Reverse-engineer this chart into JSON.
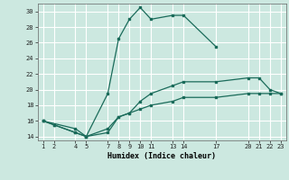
{
  "xlabel": "Humidex (Indice chaleur)",
  "bg_color": "#cce8e0",
  "grid_color": "#ffffff",
  "line_color": "#1a6b5a",
  "xlim": [
    0.5,
    23.5
  ],
  "ylim": [
    13.5,
    31
  ],
  "xticks": [
    1,
    2,
    4,
    5,
    7,
    8,
    9,
    10,
    11,
    13,
    14,
    17,
    20,
    21,
    22,
    23
  ],
  "yticks": [
    14,
    16,
    18,
    20,
    22,
    24,
    26,
    28,
    30
  ],
  "line1_x": [
    1,
    4,
    5,
    7,
    8,
    9,
    10,
    11,
    13,
    14,
    17
  ],
  "line1_y": [
    16,
    15,
    14,
    19.5,
    26.5,
    29,
    30.5,
    29,
    29.5,
    29.5,
    25.5
  ],
  "line2_x": [
    1,
    2,
    4,
    5,
    7,
    8,
    9,
    10,
    11,
    13,
    14,
    17,
    20,
    21,
    22,
    23
  ],
  "line2_y": [
    16,
    15.5,
    14.5,
    14,
    14.5,
    16.5,
    17,
    18.5,
    19.5,
    20.5,
    21,
    21,
    21.5,
    21.5,
    20,
    19.5
  ],
  "line3_x": [
    1,
    2,
    4,
    5,
    7,
    8,
    9,
    10,
    11,
    13,
    14,
    17,
    20,
    21,
    22,
    23
  ],
  "line3_y": [
    16,
    15.5,
    14.5,
    14,
    15,
    16.5,
    17,
    17.5,
    18,
    18.5,
    19,
    19,
    19.5,
    19.5,
    19.5,
    19.5
  ]
}
